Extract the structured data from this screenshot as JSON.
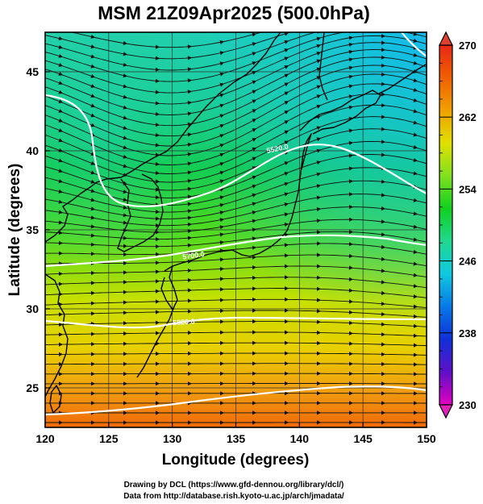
{
  "chart_data": {
    "type": "heatmap",
    "title": "MSM 21Z09Apr2025 (500.0hPa)",
    "xlabel": "Longitude (degrees)",
    "ylabel": "Latitude  (degrees)",
    "xlim": [
      120,
      150
    ],
    "ylim": [
      22.5,
      47.5
    ],
    "xticks": [
      "120",
      "125",
      "130",
      "135",
      "140",
      "145",
      "150"
    ],
    "yticks": [
      "25",
      "30",
      "35",
      "40",
      "45"
    ],
    "colorbar": {
      "range": [
        230,
        270
      ],
      "ticks": [
        "230",
        "238",
        "246",
        "254",
        "262",
        "270"
      ],
      "colors": [
        "#e000c0",
        "#6010c8",
        "#1030d8",
        "#0878e8",
        "#10c8e0",
        "#20d890",
        "#10d020",
        "#80e020",
        "#e0e000",
        "#f0a000",
        "#f06000",
        "#e82818"
      ]
    },
    "contours": [
      {
        "label": "5520.0"
      },
      {
        "label": "5700.0"
      },
      {
        "label": "5820.0"
      }
    ]
  },
  "credits": {
    "line1": "Drawing by DCL (https://www.gfd-dennou.org/library/dcl/)",
    "line2": "Data from http://database.rish.kyoto-u.ac.jp/arch/jmadata/"
  },
  "colors": {
    "stream": "#111111",
    "contour": "#ffffff",
    "coast": "#000000"
  }
}
